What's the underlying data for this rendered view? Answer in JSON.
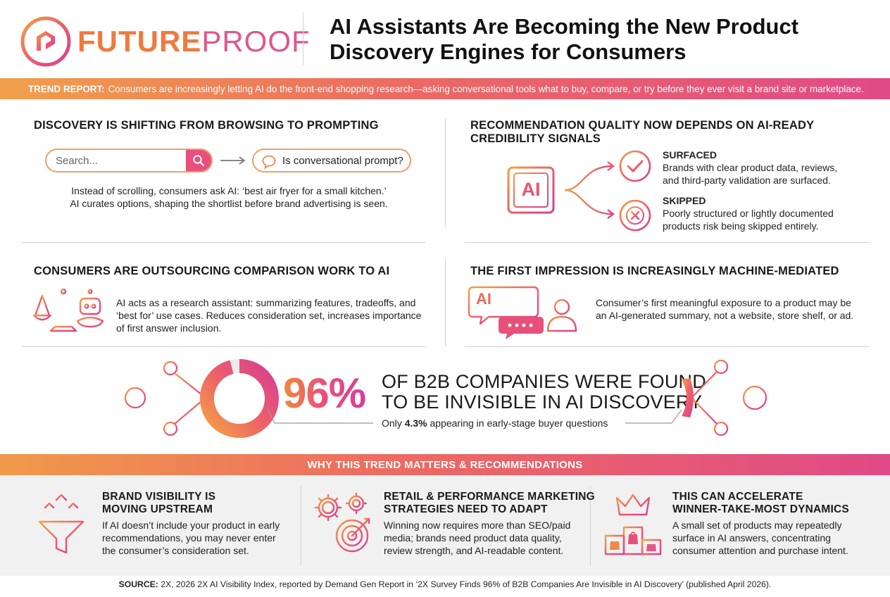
{
  "header": {
    "logo_future": "FUTURE",
    "logo_proof": "PROOF",
    "title_line1": "AI Assistants Are Becoming the New Product",
    "title_line2": "Discovery Engines for Consumers"
  },
  "banner": {
    "label": "TREND REPORT:",
    "text": "Consumers are increasingly letting AI do the front-end shopping research—asking conversational tools what to buy, compare, or try before they ever visit a brand site or marketplace."
  },
  "section1": {
    "title": "DISCOVERY IS SHIFTING FROM BROWSING TO PROMPTING",
    "search_placeholder": "Search...",
    "prompt_text": "Is conversational prompt?",
    "body_line1": "Instead of scrolling, consumers ask AI: ‘best air fryer for a small kitchen.’",
    "body_line2": "AI curates options, shaping the shortlist before brand advertising is seen."
  },
  "section2": {
    "title_line1": "RECOMMENDATION QUALITY NOW DEPENDS ON AI-READY",
    "title_line2": "CREDIBILITY SIGNALS",
    "chip_label": "AI",
    "surfaced_title": "SURFACED",
    "surfaced_line1": "Brands with clear product data, reviews,",
    "surfaced_line2": "and third-party validation are surfaced.",
    "skipped_title": "SKIPPED",
    "skipped_line1": "Poorly structured or lightly documented",
    "skipped_line2": "products risk being skipped entirely."
  },
  "section3": {
    "title": "CONSUMERS ARE OUTSOURCING COMPARISON WORK TO AI",
    "body_line1": "AI acts as a research assistant: summarizing features, tradeoffs, and",
    "body_line2": "‘best for’ use cases. Reduces consideration set, increases importance",
    "body_line3": "of first answer inclusion."
  },
  "section4": {
    "title": "THE FIRST IMPRESSION IS INCREASINGLY MACHINE-MEDIATED",
    "bubble_label": "AI",
    "body_line1": "Consumer’s first meaningful exposure to a product may be",
    "body_line2": "an AI-generated summary, not a website, store shelf, or ad."
  },
  "stat": {
    "value": "96%",
    "donut_fraction": 0.96,
    "headline_line1": "OF B2B COMPANIES WERE FOUND",
    "headline_line2": "TO BE INVISIBLE IN AI DISCOVERY",
    "sub_prefix": "Only ",
    "sub_value": "4.3%",
    "sub_suffix": " appearing in early-stage buyer questions"
  },
  "recommendations": {
    "banner": "WHY THIS TREND MATTERS & RECOMMENDATIONS",
    "items": [
      {
        "title_line1": "BRAND VISIBILITY IS",
        "title_line2": "MOVING UPSTREAM",
        "body_line1": "If AI doesn’t include your product in early",
        "body_line2": "recommendations, you may never enter",
        "body_line3": "the consumer’s consideration set."
      },
      {
        "title_line1": "RETAIL & PERFORMANCE MARKETING",
        "title_line2": "STRATEGIES NEED TO ADAPT",
        "body_line1": "Winning now requires more than SEO/paid",
        "body_line2": "media; brands need product data quality,",
        "body_line3": "review strength, and AI-readable content."
      },
      {
        "title_line1": "THIS CAN ACCELERATE",
        "title_line2": "WINNER-TAKE-MOST DYNAMICS",
        "body_line1": "A small set of products may repeatedly",
        "body_line2": "surface in AI answers, concentrating",
        "body_line3": "consumer attention and purchase intent."
      }
    ]
  },
  "source": {
    "label": "SOURCE:",
    "text": " 2X, 2026 2X AI Visibility Index, reported by Demand Gen Report in ‘2X Survey Finds 96% of B2B Companies Are Invisible in AI Discovery’ (published April 2026)."
  },
  "colors": {
    "orange": "#f08a3c",
    "pink": "#e8467c",
    "magenta": "#d93c9c"
  }
}
